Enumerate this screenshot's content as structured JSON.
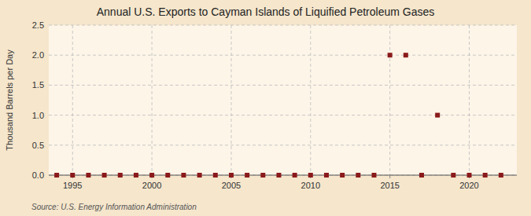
{
  "chart_data": {
    "type": "scatter",
    "title": "Annual U.S. Exports to Cayman Islands of Liquified Petroleum Gases",
    "ylabel": "Thousand Barrels per Day",
    "source": "Source: U.S. Energy Information Administration",
    "x": [
      1994,
      1995,
      1996,
      1997,
      1998,
      1999,
      2000,
      2001,
      2002,
      2003,
      2004,
      2005,
      2006,
      2007,
      2008,
      2009,
      2010,
      2011,
      2012,
      2013,
      2014,
      2015,
      2016,
      2017,
      2018,
      2019,
      2020,
      2021,
      2022
    ],
    "values": [
      0,
      0,
      0,
      0,
      0,
      0,
      0,
      0,
      0,
      0,
      0,
      0,
      0,
      0,
      0,
      0,
      0,
      0,
      0,
      0,
      0,
      2.0,
      2.0,
      0,
      1.0,
      0,
      0,
      0,
      0
    ],
    "color": "#8b1a1a",
    "marker": "square",
    "xlim": [
      1993.5,
      2023
    ],
    "ylim": [
      0,
      2.5
    ],
    "xticks": [
      1995,
      2000,
      2005,
      2010,
      2015,
      2020
    ],
    "yticks": [
      {
        "value": 0.0,
        "label": "0.0"
      },
      0.5,
      {
        "value": 1.0,
        "label": "1.0"
      },
      1.5,
      {
        "value": 2.0,
        "label": "2.0"
      },
      2.5
    ],
    "grid": true
  }
}
